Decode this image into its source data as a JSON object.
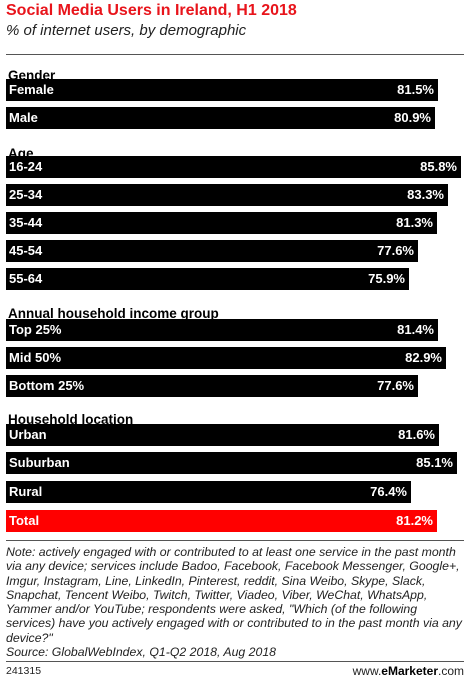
{
  "header": {
    "title": "Social Media Users in Ireland, H1 2018",
    "subtitle": "% of internet users, by demographic"
  },
  "colors": {
    "title": "#e8141b",
    "bar": "#000000",
    "total_bar": "#ff0000",
    "bar_text": "#ffffff"
  },
  "chart_data": {
    "type": "bar",
    "orientation": "horizontal",
    "title": "Social Media Users in Ireland, H1 2018",
    "subtitle": "% of internet users, by demographic",
    "xlim": [
      0,
      85.8
    ],
    "groups": [
      {
        "label": "Gender",
        "bars": [
          {
            "category": "Female",
            "value": 81.5,
            "value_label": "81.5%"
          },
          {
            "category": "Male",
            "value": 80.9,
            "value_label": "80.9%"
          }
        ]
      },
      {
        "label": "Age",
        "bars": [
          {
            "category": "16-24",
            "value": 85.8,
            "value_label": "85.8%"
          },
          {
            "category": "25-34",
            "value": 83.3,
            "value_label": "83.3%"
          },
          {
            "category": "35-44",
            "value": 81.3,
            "value_label": "81.3%"
          },
          {
            "category": "45-54",
            "value": 77.6,
            "value_label": "77.6%"
          },
          {
            "category": "55-64",
            "value": 75.9,
            "value_label": "75.9%"
          }
        ]
      },
      {
        "label": "Annual household income group",
        "bars": [
          {
            "category": "Top 25%",
            "value": 81.4,
            "value_label": "81.4%"
          },
          {
            "category": "Mid 50%",
            "value": 82.9,
            "value_label": "82.9%"
          },
          {
            "category": "Bottom 25%",
            "value": 77.6,
            "value_label": "77.6%"
          }
        ]
      },
      {
        "label": "Household location",
        "bars": [
          {
            "category": "Urban",
            "value": 81.6,
            "value_label": "81.6%"
          },
          {
            "category": "Suburban",
            "value": 85.1,
            "value_label": "85.1%"
          },
          {
            "category": "Rural",
            "value": 76.4,
            "value_label": "76.4%"
          }
        ]
      },
      {
        "label": "",
        "bars": [
          {
            "category": "Total",
            "value": 81.2,
            "value_label": "81.2%",
            "highlight": true
          }
        ]
      }
    ]
  },
  "footer": {
    "note": "Note: actively engaged with or contributed to at least one service in the past month via any device; services include Badoo, Facebook, Facebook Messenger, Google+, Imgur, Instagram, Line, LinkedIn, Pinterest, reddit, Sina Weibo, Skype, Slack, Snapchat, Tencent Weibo, Twitch, Twitter, Viadeo, Viber, WeChat, WhatsApp, Yammer and/or YouTube; respondents were asked, \"Which (of the following services) have you actively engaged with or contributed to in the past month via any device?\"",
    "source": "Source: GlobalWebIndex, Q1-Q2 2018, Aug 2018",
    "chart_id": "241315",
    "brand_prefix": "www.",
    "brand_name": "eMarketer",
    "brand_suffix": ".com"
  }
}
